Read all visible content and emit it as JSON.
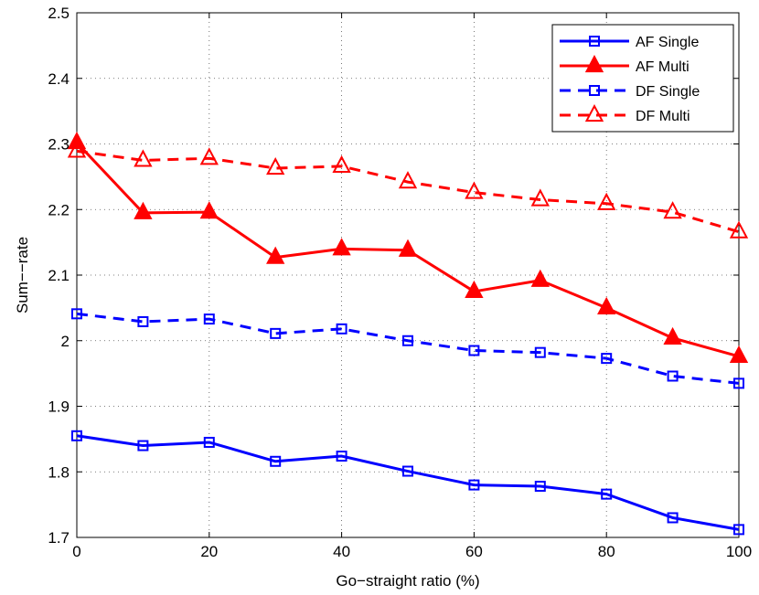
{
  "chart_data": {
    "type": "line",
    "title": "",
    "xlabel": "Go−straight ratio (%)",
    "ylabel": "Sum−−rate",
    "xlim": [
      0,
      100
    ],
    "ylim": [
      1.7,
      2.5
    ],
    "xticks": [
      0,
      20,
      40,
      60,
      80,
      100
    ],
    "yticks": [
      1.7,
      1.8,
      1.9,
      2,
      2.1,
      2.2,
      2.3,
      2.4,
      2.5
    ],
    "xtick_labels": [
      "0",
      "20",
      "40",
      "60",
      "80",
      "100"
    ],
    "ytick_labels": [
      "1.7",
      "1.8",
      "1.9",
      "2",
      "2.1",
      "2.2",
      "2.3",
      "2.4",
      "2.5"
    ],
    "grid": true,
    "legend_position": "top-right",
    "x": [
      0,
      10,
      20,
      30,
      40,
      50,
      60,
      70,
      80,
      90,
      100
    ],
    "series": [
      {
        "name": "AF Single",
        "color": "#0000ff",
        "dash": "solid",
        "marker": "square",
        "values": [
          1.855,
          1.84,
          1.845,
          1.816,
          1.824,
          1.801,
          1.78,
          1.778,
          1.766,
          1.73,
          1.712
        ]
      },
      {
        "name": "AF Multi",
        "color": "#ff0000",
        "dash": "solid",
        "marker": "triangle-filled",
        "values": [
          2.302,
          2.195,
          2.196,
          2.127,
          2.14,
          2.138,
          2.075,
          2.092,
          2.05,
          2.004,
          1.976
        ]
      },
      {
        "name": "DF Single",
        "color": "#0000ff",
        "dash": "dashed",
        "marker": "square",
        "values": [
          2.041,
          2.029,
          2.033,
          2.011,
          2.018,
          2.0,
          1.985,
          1.982,
          1.973,
          1.946,
          1.935
        ]
      },
      {
        "name": "DF Multi",
        "color": "#ff0000",
        "dash": "dashed",
        "marker": "triangle",
        "values": [
          2.289,
          2.275,
          2.278,
          2.263,
          2.266,
          2.242,
          2.226,
          2.215,
          2.209,
          2.196,
          2.166
        ]
      }
    ]
  }
}
